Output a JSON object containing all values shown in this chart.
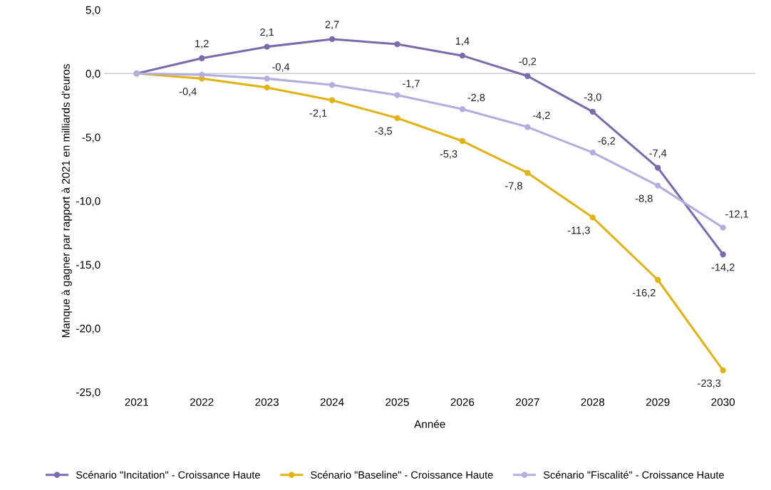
{
  "chart_data": {
    "type": "line",
    "xlabel": "Année",
    "ylabel": "Manque à gagner par rapport à 2021 en milliards d'euros",
    "categories": [
      "2021",
      "2022",
      "2023",
      "2024",
      "2025",
      "2026",
      "2027",
      "2028",
      "2029",
      "2030"
    ],
    "series": [
      {
        "name": "Scénario \"Incitation\" - Croissance Haute",
        "color": "#7b6aac",
        "values": [
          0,
          1.2,
          2.1,
          2.7,
          2.3,
          1.4,
          -0.2,
          -3.0,
          -7.4,
          -14.2
        ],
        "value_labels": [
          null,
          "1,2",
          "2,1",
          "2,7",
          null,
          "1,4",
          "-0,2",
          "-3,0",
          "-7,4",
          "-14,2"
        ]
      },
      {
        "name": "Scénario \"Baseline\" - Croissance Haute",
        "color": "#e0b416",
        "values": [
          0,
          -0.4,
          -1.1,
          -2.1,
          -3.5,
          -5.3,
          -7.8,
          -11.3,
          -16.2,
          -23.3
        ],
        "value_labels": [
          null,
          "-0,4",
          null,
          "-2,1",
          "-3,5",
          "-5,3",
          "-7,8",
          "-11,3",
          "-16,2",
          "-23,3"
        ]
      },
      {
        "name": "Scénario \"Fiscalité\" - Croissance Haute",
        "color": "#b3aee0",
        "values": [
          0,
          -0.1,
          -0.4,
          -0.9,
          -1.7,
          -2.8,
          -4.2,
          -6.2,
          -8.8,
          -12.1
        ],
        "value_labels": [
          null,
          null,
          "-0,4",
          null,
          "-1,7",
          "-2,8",
          "-4,2",
          "-6,2",
          "-8,8",
          "-12,1"
        ]
      }
    ],
    "ylim": [
      -25,
      5
    ],
    "yticks": [
      {
        "value": 5,
        "label": "5,0"
      },
      {
        "value": 0,
        "label": "0,0"
      },
      {
        "value": -5,
        "label": "-5,0"
      },
      {
        "value": -10,
        "label": "-10,0"
      },
      {
        "value": -15,
        "label": "-15,0"
      },
      {
        "value": -20,
        "label": "-20,0"
      },
      {
        "value": -25,
        "label": "-25,0"
      }
    ],
    "ref_lines": [
      {
        "axis": "y",
        "value": 0,
        "color": "#cccccc"
      }
    ],
    "grid": false,
    "legend": "bottom",
    "marker": "circle",
    "line_style": "solid"
  }
}
